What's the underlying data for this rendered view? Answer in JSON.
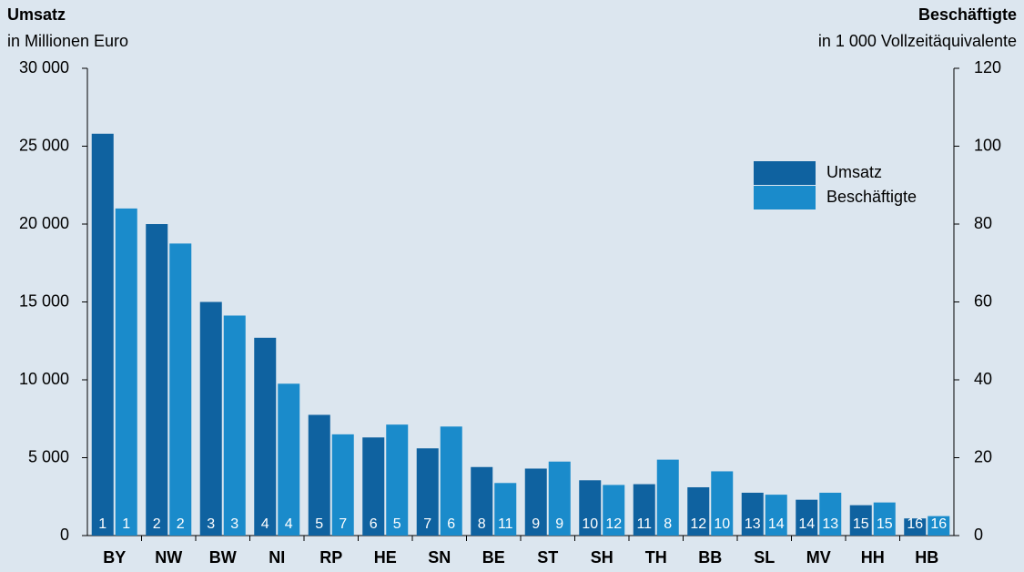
{
  "chart_data": {
    "type": "bar",
    "y_title": "Umsatz",
    "y_subtitle": "in Millionen Euro",
    "y2_title": "Beschäftigte",
    "y2_subtitle": "in 1 000 Vollzeitäquivalente",
    "categories": [
      "BY",
      "NW",
      "BW",
      "NI",
      "RP",
      "HE",
      "SN",
      "BE",
      "ST",
      "SH",
      "TH",
      "BB",
      "SL",
      "MV",
      "HH",
      "HB"
    ],
    "series": [
      {
        "name": "Umsatz",
        "color": "#0f62a0",
        "axis": "y",
        "values": [
          25800,
          20000,
          15000,
          12700,
          7750,
          6300,
          5600,
          4400,
          4300,
          3550,
          3300,
          3100,
          2750,
          2300,
          1950,
          1100
        ],
        "rank_labels": [
          "1",
          "2",
          "3",
          "4",
          "5",
          "6",
          "7",
          "8",
          "9",
          "10",
          "11",
          "12",
          "13",
          "14",
          "15",
          "16"
        ]
      },
      {
        "name": "Beschäftigte",
        "color": "#1a8bcb",
        "axis": "y2",
        "values": [
          84,
          75,
          56.5,
          39,
          26,
          28.5,
          28,
          13.5,
          19,
          13,
          19.5,
          16.5,
          10.5,
          11,
          8.5,
          5
        ],
        "rank_labels": [
          "1",
          "2",
          "3",
          "4",
          "7",
          "5",
          "6",
          "11",
          "9",
          "12",
          "8",
          "10",
          "14",
          "13",
          "15",
          "16"
        ]
      }
    ],
    "ylim": [
      0,
      30000
    ],
    "yticks": [
      0,
      {
        "value": 5000,
        "label": "5 000"
      },
      {
        "value": 10000,
        "label": "10 000"
      },
      {
        "value": 15000,
        "label": "15 000"
      },
      {
        "value": 20000,
        "label": "20 000"
      },
      {
        "value": 25000,
        "label": "25 000"
      },
      {
        "value": 30000,
        "label": "30 000"
      }
    ],
    "y2lim": [
      0,
      120
    ],
    "y2ticks": [
      0,
      20,
      40,
      60,
      80,
      100,
      120
    ],
    "legend": "upper right"
  }
}
